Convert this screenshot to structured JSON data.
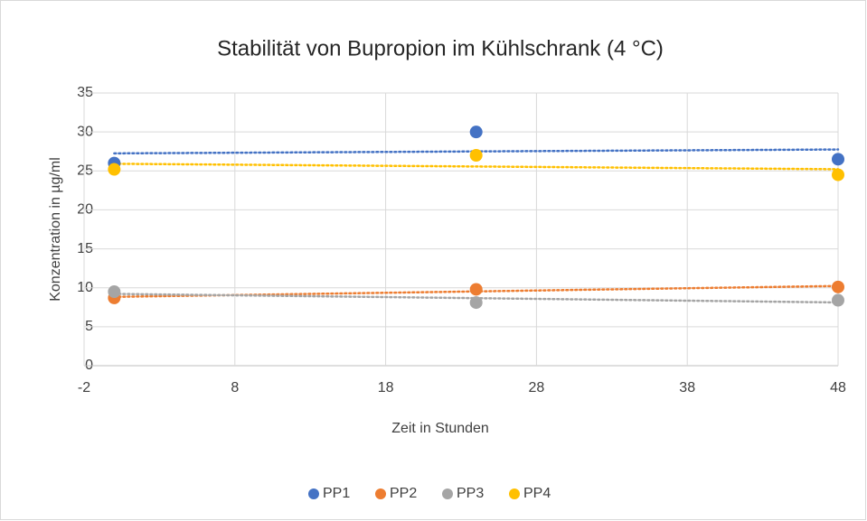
{
  "chart_data": {
    "type": "scatter",
    "title": "Stabilität von Bupropion im Kühlschrank (4 °C)",
    "x_label": "Zeit in Stunden",
    "y_label": "Konzentration in µg/ml",
    "x": [
      0,
      24,
      48
    ],
    "series": [
      {
        "name": "PP1",
        "color": "#4472c4",
        "values": [
          26,
          30,
          26.5
        ]
      },
      {
        "name": "PP2",
        "color": "#ed7d31",
        "values": [
          8.7,
          9.8,
          10.1
        ]
      },
      {
        "name": "PP3",
        "color": "#a5a5a5",
        "values": [
          9.5,
          8.1,
          8.4
        ]
      },
      {
        "name": "PP4",
        "color": "#ffc000",
        "values": [
          25.2,
          27,
          24.5
        ]
      }
    ],
    "trendline": "linear",
    "xlim": [
      -2,
      48
    ],
    "xticks": [
      -2,
      8,
      18,
      28,
      38,
      48
    ],
    "ylim": [
      0,
      35
    ],
    "yticks": [
      0,
      5,
      10,
      15,
      20,
      25,
      30,
      35
    ],
    "grid": true,
    "legend": "bottom"
  }
}
